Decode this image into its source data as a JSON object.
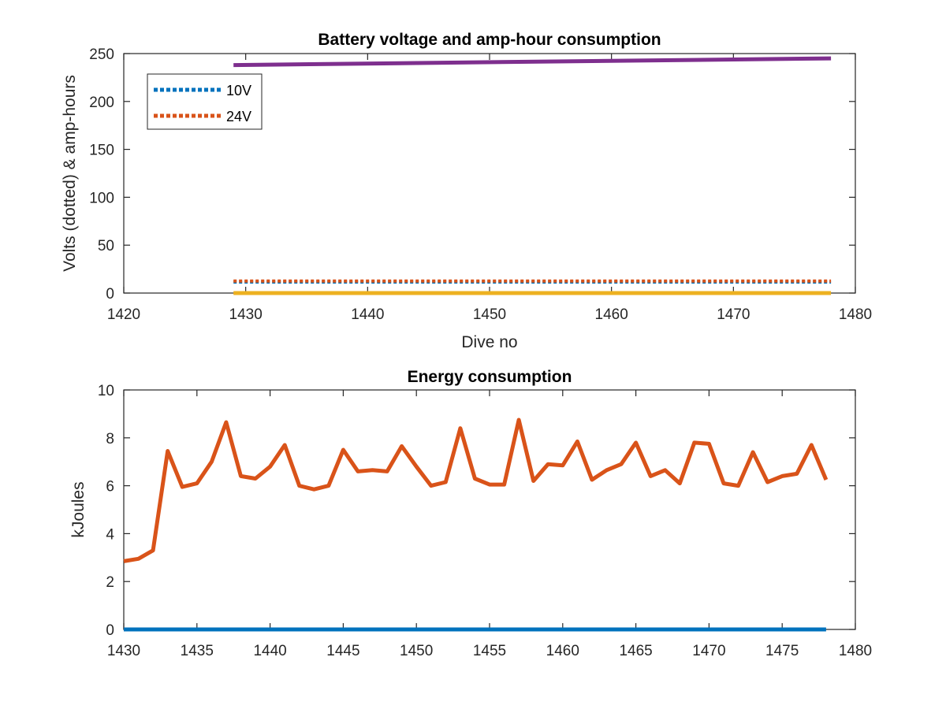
{
  "chart_data": [
    {
      "type": "line",
      "title": "Battery voltage and amp-hour consumption",
      "xlabel": "Dive no",
      "ylabel": "Volts (dotted) & amp-hours",
      "xlim": [
        1420,
        1480
      ],
      "ylim": [
        0,
        250
      ],
      "xticks": [
        1420,
        1430,
        1440,
        1450,
        1460,
        1470,
        1480
      ],
      "yticks": [
        0,
        50,
        100,
        150,
        200,
        250
      ],
      "grid": false,
      "legend_position": "top-left",
      "series": [
        {
          "name": "10V",
          "style": "dotted",
          "color": "#0072BD",
          "x": [
            1429,
            1478
          ],
          "y": [
            11.5,
            11.5
          ]
        },
        {
          "name": "24V",
          "style": "dotted",
          "color": "#D95319",
          "x": [
            1429,
            1478
          ],
          "y": [
            12.5,
            12.5
          ]
        },
        {
          "style": "solid",
          "color": "#EDB120",
          "x": [
            1429,
            1478
          ],
          "y": [
            0,
            0
          ]
        },
        {
          "style": "solid",
          "color": "#7E2F8E",
          "x": [
            1429,
            1478
          ],
          "y": [
            238,
            245
          ]
        }
      ]
    },
    {
      "type": "line",
      "title": "Energy consumption",
      "xlabel": "",
      "ylabel": "kJoules",
      "xlim": [
        1430,
        1480
      ],
      "ylim": [
        0,
        10
      ],
      "xticks": [
        1430,
        1435,
        1440,
        1445,
        1450,
        1455,
        1460,
        1465,
        1470,
        1475,
        1480
      ],
      "yticks": [
        0,
        2,
        4,
        6,
        8,
        10
      ],
      "grid": false,
      "series": [
        {
          "style": "solid",
          "color": "#D95319",
          "x": [
            1430,
            1431,
            1432,
            1433,
            1434,
            1435,
            1436,
            1437,
            1438,
            1439,
            1440,
            1441,
            1442,
            1443,
            1444,
            1445,
            1446,
            1447,
            1448,
            1449,
            1450,
            1451,
            1452,
            1453,
            1454,
            1455,
            1456,
            1457,
            1458,
            1459,
            1460,
            1461,
            1462,
            1463,
            1464,
            1465,
            1466,
            1467,
            1468,
            1469,
            1470,
            1471,
            1472,
            1473,
            1474,
            1475,
            1476,
            1477,
            1478
          ],
          "y": [
            2.85,
            2.95,
            3.3,
            7.45,
            5.95,
            6.1,
            7.0,
            8.65,
            6.4,
            6.3,
            6.8,
            7.7,
            6.0,
            5.85,
            6.0,
            7.5,
            6.6,
            6.65,
            6.6,
            7.65,
            6.8,
            6.0,
            6.15,
            8.4,
            6.3,
            6.05,
            6.05,
            8.75,
            6.2,
            6.9,
            6.85,
            7.85,
            6.25,
            6.65,
            6.9,
            7.8,
            6.4,
            6.65,
            6.1,
            7.8,
            7.75,
            6.1,
            6.0,
            7.4,
            6.15,
            6.4,
            6.5,
            7.7,
            6.25
          ]
        },
        {
          "style": "solid",
          "color": "#0072BD",
          "x": [
            1430,
            1478
          ],
          "y": [
            0,
            0
          ]
        }
      ]
    }
  ]
}
